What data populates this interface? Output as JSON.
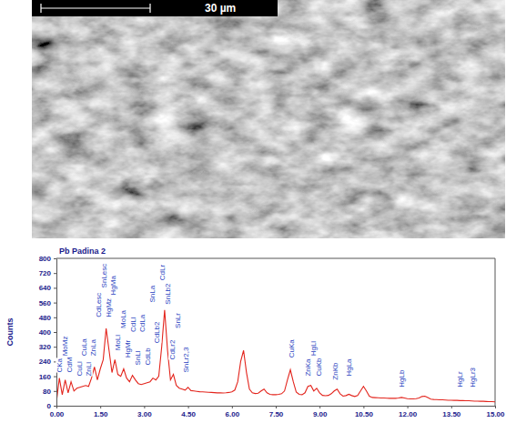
{
  "micrograph": {
    "scale_bar": "30 µm"
  },
  "chart_data": {
    "type": "line",
    "title": "Pb Padina 2",
    "y_label": "Counts",
    "color": "#e3241c",
    "grid": false,
    "xlim": [
      0,
      15
    ],
    "ylim": [
      0,
      800
    ],
    "xticks": [
      {
        "value": 0,
        "label": "0.00"
      },
      {
        "value": 1.5,
        "label": "1.50"
      },
      {
        "value": 3,
        "label": "3.00"
      },
      {
        "value": 4.5,
        "label": "4.50"
      },
      {
        "value": 6,
        "label": "6.00"
      },
      {
        "value": 7.5,
        "label": "7.50"
      },
      {
        "value": 9,
        "label": "9.00"
      },
      {
        "value": 10.5,
        "label": "10.50"
      },
      {
        "value": 12,
        "label": "12.00"
      },
      {
        "value": 13.5,
        "label": "13.50"
      },
      {
        "value": 15,
        "label": "15.00"
      }
    ],
    "yticks": [
      0,
      80,
      160,
      240,
      320,
      400,
      480,
      560,
      640,
      720,
      800
    ],
    "x": [
      0.0,
      0.1,
      0.2,
      0.3,
      0.4,
      0.5,
      0.6,
      0.7,
      0.8,
      0.9,
      1.0,
      1.1,
      1.2,
      1.3,
      1.4,
      1.5,
      1.6,
      1.7,
      1.8,
      1.9,
      2.0,
      2.1,
      2.2,
      2.3,
      2.4,
      2.5,
      2.6,
      2.7,
      2.8,
      2.9,
      3.0,
      3.1,
      3.2,
      3.3,
      3.4,
      3.5,
      3.6,
      3.7,
      3.8,
      3.9,
      4.0,
      4.1,
      4.2,
      4.3,
      4.4,
      4.5,
      4.6,
      4.7,
      4.8,
      4.9,
      5.0,
      5.1,
      5.2,
      5.3,
      5.4,
      5.5,
      5.6,
      5.7,
      5.8,
      5.9,
      6.0,
      6.1,
      6.2,
      6.3,
      6.4,
      6.5,
      6.6,
      6.7,
      6.8,
      6.9,
      7.0,
      7.1,
      7.2,
      7.3,
      7.4,
      7.5,
      7.6,
      7.7,
      7.8,
      7.9,
      8.0,
      8.1,
      8.2,
      8.3,
      8.4,
      8.5,
      8.6,
      8.7,
      8.8,
      8.9,
      9.0,
      9.1,
      9.2,
      9.3,
      9.4,
      9.5,
      9.6,
      9.7,
      9.8,
      9.9,
      10.0,
      10.1,
      10.2,
      10.3,
      10.4,
      10.5,
      10.6,
      10.7,
      10.8,
      10.9,
      11.0,
      11.1,
      11.2,
      11.3,
      11.4,
      11.5,
      11.6,
      11.7,
      11.8,
      11.9,
      12.0,
      12.1,
      12.2,
      12.3,
      12.4,
      12.5,
      12.6,
      12.7,
      12.8,
      12.9,
      13.0,
      13.1,
      13.2,
      13.3,
      13.4,
      13.5,
      13.6,
      13.7,
      13.8,
      13.9,
      14.0,
      14.1,
      14.2,
      14.3,
      14.4,
      14.5,
      14.6,
      14.7,
      14.8,
      14.9,
      15.0
    ],
    "values": [
      20,
      150,
      60,
      140,
      70,
      130,
      80,
      95,
      100,
      105,
      110,
      105,
      150,
      210,
      140,
      200,
      250,
      420,
      300,
      180,
      250,
      170,
      160,
      200,
      150,
      130,
      165,
      140,
      120,
      115,
      120,
      125,
      130,
      150,
      140,
      160,
      320,
      520,
      300,
      140,
      170,
      110,
      95,
      90,
      85,
      100,
      82,
      80,
      78,
      76,
      75,
      74,
      73,
      72,
      71,
      70,
      70,
      69,
      70,
      72,
      75,
      85,
      130,
      240,
      300,
      180,
      90,
      70,
      66,
      68,
      80,
      90,
      70,
      62,
      60,
      60,
      62,
      65,
      80,
      140,
      195,
      130,
      75,
      62,
      60,
      70,
      105,
      110,
      80,
      95,
      70,
      56,
      54,
      56,
      65,
      80,
      90,
      65,
      52,
      55,
      62,
      55,
      50,
      55,
      80,
      105,
      80,
      52,
      45,
      44,
      43,
      42,
      42,
      41,
      40,
      40,
      40,
      42,
      45,
      42,
      38,
      37,
      37,
      38,
      42,
      50,
      52,
      44,
      36,
      34,
      33,
      32,
      32,
      31,
      30,
      30,
      29,
      29,
      28,
      28,
      27,
      27,
      26,
      25,
      25,
      24,
      24,
      23,
      22,
      22,
      21
    ],
    "annotations": [
      {
        "text": "CKa",
        "x": 0.12,
        "y": 180
      },
      {
        "text": "MoMz",
        "x": 0.3,
        "y": 270
      },
      {
        "text": "CdM",
        "x": 0.45,
        "y": 180
      },
      {
        "text": "CuLl",
        "x": 0.78,
        "y": 160
      },
      {
        "text": "CuLa",
        "x": 0.95,
        "y": 270
      },
      {
        "text": "ZnLl",
        "x": 1.1,
        "y": 160
      },
      {
        "text": "ZnLa",
        "x": 1.25,
        "y": 270
      },
      {
        "text": "CdLesc",
        "x": 1.45,
        "y": 480
      },
      {
        "text": "SnLesc",
        "x": 1.62,
        "y": 640
      },
      {
        "text": "HgMz",
        "x": 1.78,
        "y": 480
      },
      {
        "text": "HgMa",
        "x": 1.95,
        "y": 600
      },
      {
        "text": "MoLl",
        "x": 2.1,
        "y": 300
      },
      {
        "text": "MoLa",
        "x": 2.28,
        "y": 420
      },
      {
        "text": "HgMr",
        "x": 2.45,
        "y": 260
      },
      {
        "text": "CdLl",
        "x": 2.62,
        "y": 400
      },
      {
        "text": "SnLl",
        "x": 2.78,
        "y": 220
      },
      {
        "text": "CdLa",
        "x": 2.95,
        "y": 400
      },
      {
        "text": "CdLb",
        "x": 3.12,
        "y": 220
      },
      {
        "text": "SnLa",
        "x": 3.28,
        "y": 560
      },
      {
        "text": "CdLb2",
        "x": 3.45,
        "y": 340
      },
      {
        "text": "CdLr",
        "x": 3.62,
        "y": 680
      },
      {
        "text": "SnLb2",
        "x": 3.8,
        "y": 550
      },
      {
        "text": "CdLr2",
        "x": 3.97,
        "y": 250
      },
      {
        "text": "SnLr",
        "x": 4.14,
        "y": 420
      },
      {
        "text": "SnLr2,3",
        "x": 4.45,
        "y": 180
      },
      {
        "text": "CuKa",
        "x": 8.04,
        "y": 260
      },
      {
        "text": "ZnKa",
        "x": 8.62,
        "y": 160
      },
      {
        "text": "HgLl",
        "x": 8.8,
        "y": 270
      },
      {
        "text": "CuKb",
        "x": 8.97,
        "y": 160
      },
      {
        "text": "ZnKb",
        "x": 9.55,
        "y": 140
      },
      {
        "text": "HgLa",
        "x": 9.99,
        "y": 160
      },
      {
        "text": "HgLb",
        "x": 11.82,
        "y": 100
      },
      {
        "text": "HgLr",
        "x": 13.8,
        "y": 100
      },
      {
        "text": "HgLr3",
        "x": 14.25,
        "y": 100
      }
    ]
  }
}
